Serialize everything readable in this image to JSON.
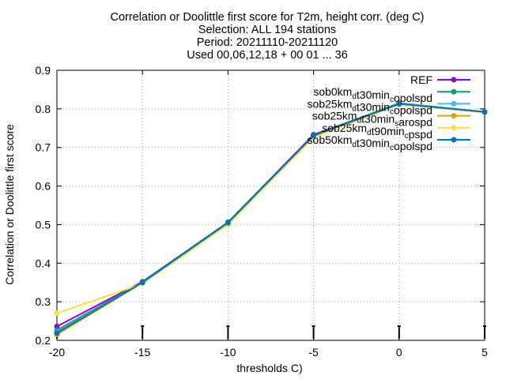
{
  "chart_data": {
    "type": "line",
    "title_lines": [
      "Correlation or Doolittle first score  for T2m, height corr. (deg C)",
      "Selection: ALL    194 stations",
      "Period: 20211110-20211120",
      "Used 00,06,12,18 + 00 01 ... 36"
    ],
    "xlabel": "thresholds C)",
    "ylabel": "Correlation or Doolittle first score",
    "xlim": [
      -20,
      5
    ],
    "ylim": [
      0.2,
      0.9
    ],
    "xticks": [
      -20,
      -15,
      -10,
      -5,
      0,
      5
    ],
    "xtick_labels": [
      "-20",
      "-15",
      "-10",
      "-5",
      "0",
      "5"
    ],
    "yticks": [
      0.2,
      0.3,
      0.4,
      0.5,
      0.6,
      0.7,
      0.8,
      0.9
    ],
    "ytick_labels": [
      "0.2",
      "0.3",
      "0.4",
      "0.5",
      "0.6",
      "0.7",
      "0.8",
      "0.9"
    ],
    "grid": true,
    "legend_position": "top-right",
    "x": [
      -20,
      -15,
      -10,
      -5,
      0,
      5
    ],
    "series": [
      {
        "name": "REF",
        "name_parts": [
          [
            "REF",
            ""
          ]
        ],
        "color": "#9400d3",
        "values": [
          0.236,
          0.352,
          0.506,
          0.733,
          0.813,
          0.792
        ]
      },
      {
        "name": "sob0kmdt30mincopolspd",
        "name_parts": [
          [
            "sob0km",
            ""
          ],
          [
            "d",
            "sub"
          ],
          [
            "t30min",
            ""
          ],
          [
            "c",
            "sub"
          ],
          [
            "opolspd",
            ""
          ]
        ],
        "color": "#009e73",
        "values": [
          0.226,
          0.351,
          0.506,
          0.731,
          0.815,
          0.792
        ]
      },
      {
        "name": "sob25kmdt30mincopolspd",
        "name_parts": [
          [
            "sob25km",
            ""
          ],
          [
            "d",
            "sub"
          ],
          [
            "t30min",
            ""
          ],
          [
            "c",
            "sub"
          ],
          [
            "opolspd",
            ""
          ]
        ],
        "color": "#56b4e9",
        "values": [
          0.222,
          0.35,
          0.505,
          0.73,
          0.814,
          0.792
        ]
      },
      {
        "name": "sob25kmdt30minsarospd",
        "name_parts": [
          [
            "sob25km",
            ""
          ],
          [
            "d",
            "sub"
          ],
          [
            "t30min",
            ""
          ],
          [
            "s",
            "sub"
          ],
          [
            "arospd",
            ""
          ]
        ],
        "color": "#e69f00",
        "values": [
          0.215,
          0.349,
          0.504,
          0.728,
          0.812,
          0.791
        ]
      },
      {
        "name": "sob25kmdt90mincpspd",
        "name_parts": [
          [
            "sob25km",
            ""
          ],
          [
            "d",
            "sub"
          ],
          [
            "t90min",
            ""
          ],
          [
            "c",
            "sub"
          ],
          [
            "pspd",
            ""
          ]
        ],
        "color": "#f0e442",
        "values": [
          0.27,
          0.347,
          0.5,
          0.726,
          0.811,
          0.792
        ]
      },
      {
        "name": "sob50kmdt30mincopolspd",
        "name_parts": [
          [
            "sob50km",
            ""
          ],
          [
            "d",
            "sub"
          ],
          [
            "t30min",
            ""
          ],
          [
            "c",
            "sub"
          ],
          [
            "opolspd",
            ""
          ]
        ],
        "color": "#0072b2",
        "values": [
          0.219,
          0.35,
          0.505,
          0.731,
          0.813,
          0.792
        ]
      }
    ]
  }
}
